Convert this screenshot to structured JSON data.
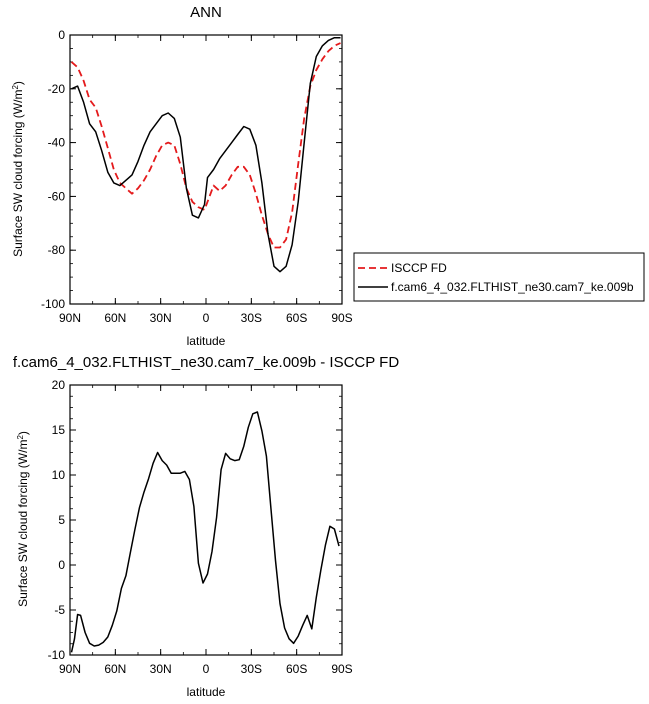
{
  "chart_data": [
    {
      "type": "line",
      "title": "ANN",
      "xlabel": "latitude",
      "ylabel": "Surface SW cloud forcing (W/m",
      "ylabel_sup": "2",
      "ylabel_end": ")",
      "xlim": [
        90,
        -90
      ],
      "ylim": [
        -100,
        0
      ],
      "x_ticks": [
        90,
        60,
        30,
        0,
        -30,
        -60,
        -90
      ],
      "x_tick_labels": [
        "90N",
        "60N",
        "30N",
        "0",
        "30S",
        "60S",
        "90S"
      ],
      "y_ticks": [
        0,
        -20,
        -40,
        -60,
        -80,
        -100
      ],
      "y_tick_labels": [
        "0",
        "-20",
        "-40",
        "-60",
        "-80",
        "-100"
      ],
      "legend_position": "outside-right",
      "series": [
        {
          "name": "ISCCP FD",
          "color": "#e41a1c",
          "dash": "dashed",
          "x": [
            89,
            85,
            81,
            77,
            73,
            69,
            65,
            61,
            57,
            53,
            49,
            45,
            41,
            37,
            33,
            29,
            25,
            21,
            17,
            13,
            9,
            5,
            1,
            -1,
            -5,
            -9,
            -13,
            -17,
            -21,
            -25,
            -29,
            -33,
            -37,
            -41,
            -45,
            -49,
            -53,
            -57,
            -61,
            -65,
            -69,
            -73,
            -77,
            -81,
            -85,
            -89
          ],
          "y": [
            -10,
            -12,
            -17,
            -24,
            -27,
            -34,
            -42,
            -50,
            -55,
            -57,
            -59,
            -57,
            -54,
            -50,
            -45,
            -41,
            -40,
            -41,
            -48,
            -57,
            -62,
            -64,
            -65,
            -62,
            -56,
            -58,
            -56,
            -52,
            -49,
            -49,
            -52,
            -59,
            -67,
            -74,
            -79,
            -79,
            -76,
            -66,
            -48,
            -31,
            -19,
            -13,
            -9,
            -6,
            -4,
            -3
          ]
        },
        {
          "name": "f.cam6_4_032.FLTHIST_ne30.cam7_ke.009b",
          "color": "#000000",
          "dash": "solid",
          "x": [
            89,
            85,
            81,
            77,
            73,
            69,
            65,
            61,
            57,
            53,
            49,
            45,
            41,
            37,
            33,
            29,
            25,
            21,
            17,
            13,
            9,
            5,
            1,
            -1,
            -5,
            -9,
            -13,
            -17,
            -21,
            -25,
            -29,
            -33,
            -37,
            -41,
            -45,
            -49,
            -53,
            -57,
            -61,
            -65,
            -69,
            -73,
            -77,
            -81,
            -85,
            -89
          ],
          "y": [
            -20,
            -19,
            -25,
            -33,
            -36,
            -43,
            -51,
            -55,
            -56,
            -54,
            -52,
            -47,
            -41,
            -36,
            -33,
            -30,
            -29,
            -31,
            -38,
            -57,
            -67,
            -68,
            -63,
            -53,
            -50,
            -46,
            -43,
            -40,
            -37,
            -34,
            -35,
            -41,
            -55,
            -74,
            -86,
            -88,
            -86,
            -78,
            -62,
            -40,
            -18,
            -8,
            -4,
            -2,
            -1,
            -1
          ]
        }
      ]
    },
    {
      "type": "line",
      "title": "f.cam6_4_032.FLTHIST_ne30.cam7_ke.009b - ISCCP FD",
      "xlabel": "latitude",
      "ylabel": "Surface SW cloud forcing (W/m",
      "ylabel_sup": "2",
      "ylabel_end": ")",
      "xlim": [
        90,
        -90
      ],
      "ylim": [
        -10,
        20
      ],
      "x_ticks": [
        90,
        60,
        30,
        0,
        -30,
        -60,
        -90
      ],
      "x_tick_labels": [
        "90N",
        "60N",
        "30N",
        "0",
        "30S",
        "60S",
        "90S"
      ],
      "y_ticks": [
        20,
        15,
        10,
        5,
        0,
        -5,
        -10
      ],
      "y_tick_labels": [
        "20",
        "15",
        "10",
        "5",
        "0",
        "-5",
        "-10"
      ],
      "series": [
        {
          "color": "#000000",
          "dash": "solid",
          "x": [
            89,
            87,
            85,
            83,
            80,
            77,
            74,
            71,
            68,
            65,
            62,
            59,
            56,
            53,
            50,
            47,
            44,
            41,
            38,
            35,
            32,
            29,
            26,
            23,
            20,
            17,
            14,
            11,
            8,
            5,
            2,
            -1,
            -4,
            -7,
            -10,
            -13,
            -16,
            -19,
            -22,
            -25,
            -28,
            -31,
            -34,
            -37,
            -40,
            -43,
            -46,
            -49,
            -52,
            -55,
            -58,
            -61,
            -64,
            -67,
            -70,
            -73,
            -76,
            -79,
            -82,
            -85,
            -88
          ],
          "y": [
            -9.7,
            -8.2,
            -5.5,
            -5.6,
            -7.5,
            -8.7,
            -9.0,
            -8.9,
            -8.6,
            -8.0,
            -6.7,
            -5.1,
            -2.6,
            -1.2,
            1.4,
            4.0,
            6.4,
            8.1,
            9.6,
            11.3,
            12.5,
            11.6,
            11.1,
            10.2,
            10.2,
            10.2,
            10.4,
            9.5,
            6.5,
            0.2,
            -2.0,
            -1.0,
            1.5,
            5.3,
            10.6,
            12.4,
            11.8,
            11.6,
            11.7,
            13.2,
            15.3,
            16.8,
            17.0,
            14.9,
            12.1,
            6.2,
            0.5,
            -4.3,
            -7.0,
            -8.2,
            -8.7,
            -7.9,
            -6.7,
            -5.6,
            -7.1,
            -3.6,
            -0.6,
            2.2,
            4.3,
            4.0,
            2.1
          ]
        }
      ]
    }
  ]
}
